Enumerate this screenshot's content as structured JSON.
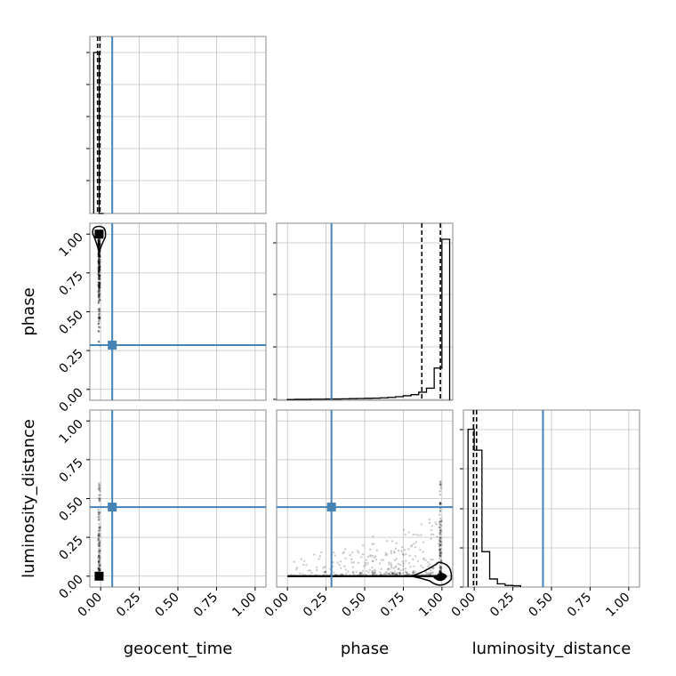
{
  "chart_data": {
    "type": "corner",
    "parameters": [
      "geocent_time",
      "phase",
      "luminosity_distance"
    ],
    "tick_labels": [
      "0.00",
      "0.25",
      "0.50",
      "0.75",
      "1.00"
    ],
    "axis_range": [
      -0.07,
      1.07
    ],
    "colors": {
      "truth": "#4682b4",
      "samples": "#000000",
      "grid": "#c0c0c0",
      "frame": "#888888"
    },
    "grid": true,
    "truths": {
      "geocent_time": 0.075,
      "phase": 0.285,
      "luminosity_distance": 0.445
    },
    "quantiles": {
      "geocent_time": [
        -0.02,
        -0.005
      ],
      "phase": [
        0.87,
        0.99
      ],
      "luminosity_distance": [
        -0.005,
        0.015
      ]
    },
    "histograms": {
      "geocent_time": {
        "bin_edges": [
          -0.045,
          -0.01,
          0.02
        ],
        "counts": [
          1.0,
          0.0
        ]
      },
      "phase": {
        "bin_edges": [
          0.0,
          0.05,
          0.1,
          0.15,
          0.2,
          0.25,
          0.3,
          0.35,
          0.4,
          0.45,
          0.5,
          0.55,
          0.6,
          0.65,
          0.7,
          0.75,
          0.8,
          0.85,
          0.9,
          0.95,
          1.0,
          1.05
        ],
        "counts": [
          0.005,
          0.006,
          0.006,
          0.007,
          0.007,
          0.008,
          0.008,
          0.009,
          0.01,
          0.011,
          0.012,
          0.013,
          0.015,
          0.018,
          0.022,
          0.028,
          0.035,
          0.05,
          0.075,
          0.2,
          1.0
        ]
      },
      "luminosity_distance": {
        "bin_edges": [
          -0.04,
          0.0,
          0.05,
          0.1,
          0.15,
          0.2,
          0.25,
          0.3
        ],
        "counts": [
          0.98,
          0.85,
          0.22,
          0.05,
          0.02,
          0.01,
          0.008
        ]
      }
    }
  }
}
